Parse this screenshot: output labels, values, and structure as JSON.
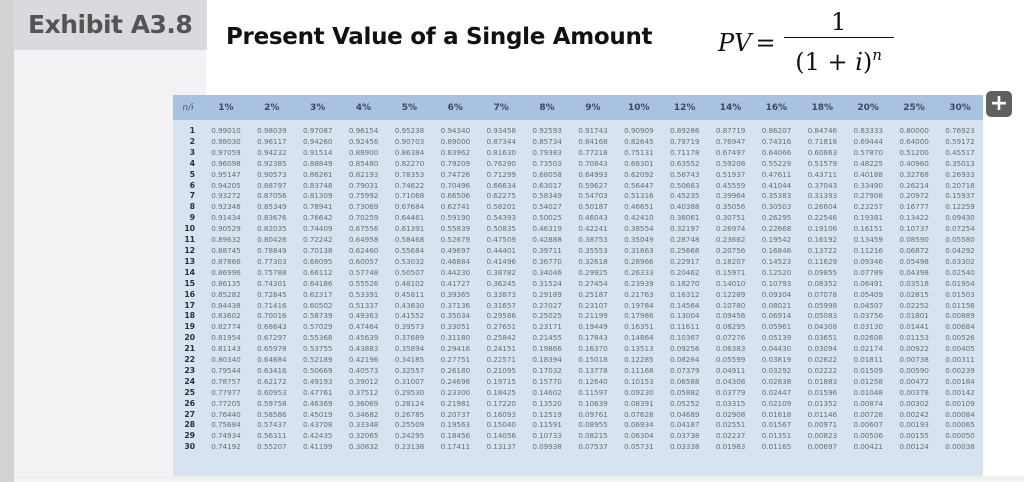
{
  "exhibit": {
    "label": "Exhibit A3.8"
  },
  "title": "Present Value of a Single Amount",
  "formula": {
    "lhs": "PV",
    "eq": "=",
    "numerator": "1",
    "denominator_base": "(1 + ",
    "denominator_var": "i",
    "denominator_close": ")",
    "exponent": "n"
  },
  "table": {
    "corner": "n/i",
    "rates": [
      "1%",
      "2%",
      "3%",
      "4%",
      "5%",
      "6%",
      "7%",
      "8%",
      "9%",
      "10%",
      "12%",
      "14%",
      "16%",
      "18%",
      "20%",
      "25%",
      "30%"
    ],
    "rows": [
      {
        "n": "1",
        "v": [
          "0.99010",
          "0.98039",
          "0.97087",
          "0.96154",
          "0.95238",
          "0.94340",
          "0.93458",
          "0.92593",
          "0.91743",
          "0.90909",
          "0.89286",
          "0.87719",
          "0.86207",
          "0.84746",
          "0.83333",
          "0.80000",
          "0.76923"
        ]
      },
      {
        "n": "2",
        "v": [
          "0.98030",
          "0.96117",
          "0.94260",
          "0.92456",
          "0.90703",
          "0.89000",
          "0.87344",
          "0.85734",
          "0.84168",
          "0.82645",
          "0.79719",
          "0.76947",
          "0.74316",
          "0.71818",
          "0.69444",
          "0.64000",
          "0.59172"
        ]
      },
      {
        "n": "3",
        "v": [
          "0.97059",
          "0.94232",
          "0.91514",
          "0.88900",
          "0.86384",
          "0.83962",
          "0.81630",
          "0.79383",
          "0.77218",
          "0.75131",
          "0.71178",
          "0.67497",
          "0.64066",
          "0.60863",
          "0.57870",
          "0.51200",
          "0.45517"
        ]
      },
      {
        "n": "4",
        "v": [
          "0.96098",
          "0.92385",
          "0.88849",
          "0.85480",
          "0.82270",
          "0.79209",
          "0.76290",
          "0.73503",
          "0.70843",
          "0.68301",
          "0.63552",
          "0.59208",
          "0.55229",
          "0.51579",
          "0.48225",
          "0.40960",
          "0.35013"
        ]
      },
      {
        "n": "5",
        "v": [
          "0.95147",
          "0.90573",
          "0.86261",
          "0.82193",
          "0.78353",
          "0.74726",
          "0.71299",
          "0.68058",
          "0.64993",
          "0.62092",
          "0.56743",
          "0.51937",
          "0.47611",
          "0.43711",
          "0.40188",
          "0.32768",
          "0.26933"
        ]
      },
      {
        "n": "6",
        "v": [
          "0.94205",
          "0.88797",
          "0.83748",
          "0.79031",
          "0.74622",
          "0.70496",
          "0.66634",
          "0.63017",
          "0.59627",
          "0.56447",
          "0.50663",
          "0.45559",
          "0.41044",
          "0.37043",
          "0.33490",
          "0.26214",
          "0.20718"
        ]
      },
      {
        "n": "7",
        "v": [
          "0.93272",
          "0.87056",
          "0.81309",
          "0.75992",
          "0.71068",
          "0.66506",
          "0.62275",
          "0.58349",
          "0.54703",
          "0.51316",
          "0.45235",
          "0.39964",
          "0.35383",
          "0.31393",
          "0.27908",
          "0.20972",
          "0.15937"
        ]
      },
      {
        "n": "8",
        "v": [
          "0.92348",
          "0.85349",
          "0.78941",
          "0.73069",
          "0.67684",
          "0.62741",
          "0.58201",
          "0.54027",
          "0.50187",
          "0.46651",
          "0.40388",
          "0.35056",
          "0.30503",
          "0.26604",
          "0.23257",
          "0.16777",
          "0.12259"
        ]
      },
      {
        "n": "9",
        "v": [
          "0.91434",
          "0.83676",
          "0.76642",
          "0.70259",
          "0.64461",
          "0.59190",
          "0.54393",
          "0.50025",
          "0.46043",
          "0.42410",
          "0.36061",
          "0.30751",
          "0.26295",
          "0.22546",
          "0.19381",
          "0.13422",
          "0.09430"
        ]
      },
      {
        "n": "10",
        "v": [
          "0.90529",
          "0.82035",
          "0.74409",
          "0.67556",
          "0.61391",
          "0.55839",
          "0.50835",
          "0.46319",
          "0.42241",
          "0.38554",
          "0.32197",
          "0.26974",
          "0.22668",
          "0.19106",
          "0.16151",
          "0.10737",
          "0.07254"
        ]
      },
      {
        "n": "11",
        "v": [
          "0.89632",
          "0.80426",
          "0.72242",
          "0.64958",
          "0.58468",
          "0.52679",
          "0.47509",
          "0.42888",
          "0.38753",
          "0.35049",
          "0.28748",
          "0.23662",
          "0.19542",
          "0.16192",
          "0.13459",
          "0.08590",
          "0.05580"
        ]
      },
      {
        "n": "12",
        "v": [
          "0.88745",
          "0.78849",
          "0.70138",
          "0.62460",
          "0.55684",
          "0.49697",
          "0.44401",
          "0.39711",
          "0.35553",
          "0.31863",
          "0.25668",
          "0.20756",
          "0.16846",
          "0.13722",
          "0.11216",
          "0.06872",
          "0.04292"
        ]
      },
      {
        "n": "13",
        "v": [
          "0.87866",
          "0.77303",
          "0.68095",
          "0.60057",
          "0.53032",
          "0.46884",
          "0.41496",
          "0.36770",
          "0.32618",
          "0.28966",
          "0.22917",
          "0.18207",
          "0.14523",
          "0.11629",
          "0.09346",
          "0.05498",
          "0.03302"
        ]
      },
      {
        "n": "14",
        "v": [
          "0.86996",
          "0.75788",
          "0.66112",
          "0.57748",
          "0.50507",
          "0.44230",
          "0.38782",
          "0.34046",
          "0.29925",
          "0.26333",
          "0.20462",
          "0.15971",
          "0.12520",
          "0.09855",
          "0.07789",
          "0.04398",
          "0.02540"
        ]
      },
      {
        "n": "15",
        "v": [
          "0.86135",
          "0.74301",
          "0.64186",
          "0.55526",
          "0.48102",
          "0.41727",
          "0.36245",
          "0.31524",
          "0.27454",
          "0.23939",
          "0.18270",
          "0.14010",
          "0.10793",
          "0.08352",
          "0.06491",
          "0.03518",
          "0.01954"
        ]
      },
      {
        "n": "16",
        "v": [
          "0.85282",
          "0.72845",
          "0.62317",
          "0.53391",
          "0.45811",
          "0.39365",
          "0.33873",
          "0.29189",
          "0.25187",
          "0.21763",
          "0.16312",
          "0.12289",
          "0.09304",
          "0.07078",
          "0.05409",
          "0.02815",
          "0.01503"
        ]
      },
      {
        "n": "17",
        "v": [
          "0.84438",
          "0.71416",
          "0.60502",
          "0.51337",
          "0.43630",
          "0.37136",
          "0.31657",
          "0.27027",
          "0.23107",
          "0.19784",
          "0.14564",
          "0.10780",
          "0.08021",
          "0.05998",
          "0.04507",
          "0.02252",
          "0.01156"
        ]
      },
      {
        "n": "18",
        "v": [
          "0.83602",
          "0.70016",
          "0.58739",
          "0.49363",
          "0.41552",
          "0.35034",
          "0.29586",
          "0.25025",
          "0.21199",
          "0.17986",
          "0.13004",
          "0.09456",
          "0.06914",
          "0.05083",
          "0.03756",
          "0.01801",
          "0.00889"
        ]
      },
      {
        "n": "19",
        "v": [
          "0.82774",
          "0.68643",
          "0.57029",
          "0.47464",
          "0.39573",
          "0.33051",
          "0.27651",
          "0.23171",
          "0.19449",
          "0.16351",
          "0.11611",
          "0.08295",
          "0.05961",
          "0.04308",
          "0.03130",
          "0.01441",
          "0.00684"
        ]
      },
      {
        "n": "20",
        "v": [
          "0.81954",
          "0.67297",
          "0.55368",
          "0.45639",
          "0.37689",
          "0.31180",
          "0.25842",
          "0.21455",
          "0.17843",
          "0.14864",
          "0.10367",
          "0.07276",
          "0.05139",
          "0.03651",
          "0.02608",
          "0.01153",
          "0.00526"
        ]
      },
      {
        "n": "21",
        "v": [
          "0.81143",
          "0.65978",
          "0.53755",
          "0.43883",
          "0.35894",
          "0.29416",
          "0.24151",
          "0.19866",
          "0.16370",
          "0.13513",
          "0.09256",
          "0.06383",
          "0.04430",
          "0.03094",
          "0.02174",
          "0.00922",
          "0.00405"
        ]
      },
      {
        "n": "22",
        "v": [
          "0.80340",
          "0.64684",
          "0.52189",
          "0.42196",
          "0.34185",
          "0.27751",
          "0.22571",
          "0.18394",
          "0.15018",
          "0.12285",
          "0.08264",
          "0.05599",
          "0.03819",
          "0.02622",
          "0.01811",
          "0.00738",
          "0.00311"
        ]
      },
      {
        "n": "23",
        "v": [
          "0.79544",
          "0.63416",
          "0.50669",
          "0.40573",
          "0.32557",
          "0.26180",
          "0.21095",
          "0.17032",
          "0.13778",
          "0.11168",
          "0.07379",
          "0.04911",
          "0.03292",
          "0.02222",
          "0.01509",
          "0.00590",
          "0.00239"
        ]
      },
      {
        "n": "24",
        "v": [
          "0.78757",
          "0.62172",
          "0.49193",
          "0.39012",
          "0.31007",
          "0.24698",
          "0.19715",
          "0.15770",
          "0.12640",
          "0.10153",
          "0.06588",
          "0.04308",
          "0.02838",
          "0.01883",
          "0.01258",
          "0.00472",
          "0.00184"
        ]
      },
      {
        "n": "25",
        "v": [
          "0.77977",
          "0.60953",
          "0.47761",
          "0.37512",
          "0.29530",
          "0.23300",
          "0.18425",
          "0.14602",
          "0.11597",
          "0.09230",
          "0.05882",
          "0.03779",
          "0.02447",
          "0.01596",
          "0.01048",
          "0.00378",
          "0.00142"
        ]
      },
      {
        "n": "26",
        "v": [
          "0.77205",
          "0.59758",
          "0.46369",
          "0.36069",
          "0.28124",
          "0.21981",
          "0.17220",
          "0.13520",
          "0.10639",
          "0.08391",
          "0.05252",
          "0.03315",
          "0.02109",
          "0.01352",
          "0.00874",
          "0.00302",
          "0.00109"
        ]
      },
      {
        "n": "27",
        "v": [
          "0.76440",
          "0.58586",
          "0.45019",
          "0.34682",
          "0.26785",
          "0.20737",
          "0.16093",
          "0.12519",
          "0.09761",
          "0.07628",
          "0.04689",
          "0.02908",
          "0.01818",
          "0.01146",
          "0.00728",
          "0.00242",
          "0.00084"
        ]
      },
      {
        "n": "28",
        "v": [
          "0.75684",
          "0.57437",
          "0.43708",
          "0.33348",
          "0.25509",
          "0.19563",
          "0.15040",
          "0.11591",
          "0.08955",
          "0.06934",
          "0.04187",
          "0.02551",
          "0.01567",
          "0.00971",
          "0.00607",
          "0.00193",
          "0.00065"
        ]
      },
      {
        "n": "29",
        "v": [
          "0.74934",
          "0.56311",
          "0.42435",
          "0.32065",
          "0.24295",
          "0.18456",
          "0.14056",
          "0.10733",
          "0.08215",
          "0.06304",
          "0.03738",
          "0.02237",
          "0.01351",
          "0.00823",
          "0.00506",
          "0.00155",
          "0.00050"
        ]
      },
      {
        "n": "30",
        "v": [
          "0.74192",
          "0.55207",
          "0.41199",
          "0.30832",
          "0.23138",
          "0.17411",
          "0.13137",
          "0.09938",
          "0.07537",
          "0.05731",
          "0.03338",
          "0.01963",
          "0.01165",
          "0.00697",
          "0.00421",
          "0.00124",
          "0.00038"
        ]
      }
    ]
  },
  "expand_button": {
    "icon": "plus-icon",
    "glyph": "+"
  }
}
